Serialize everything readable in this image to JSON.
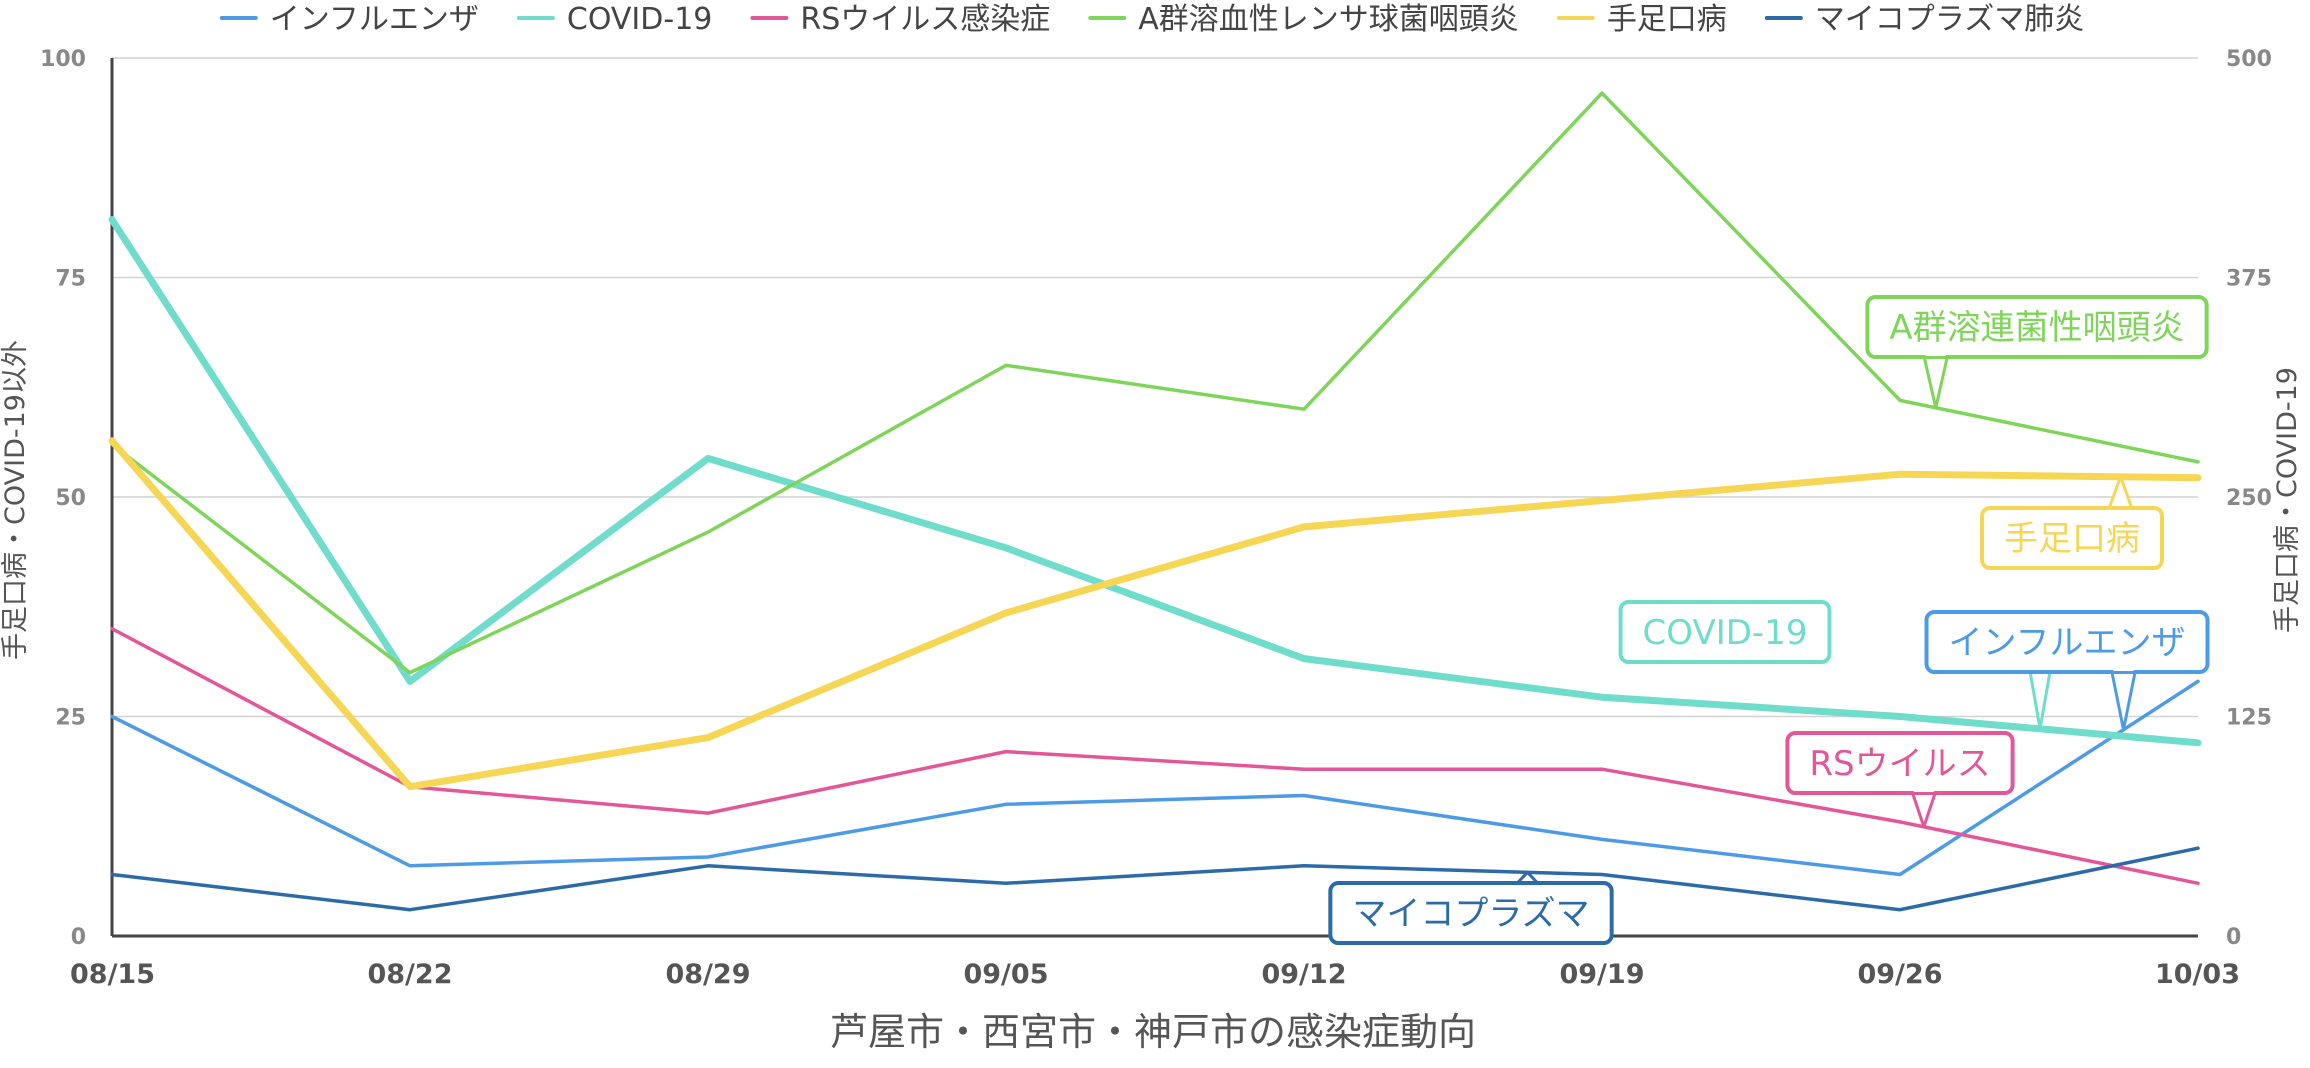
{
  "chart_data": {
    "type": "line",
    "xlabel": "芦屋市・西宮市・神戸市の感染症動向",
    "ylabel_left": "手足口病・COVID-19以外",
    "ylabel_right": "手足口病・COVID-19",
    "ylim_left": [
      0,
      100
    ],
    "ylim_right": [
      0,
      500
    ],
    "yticks_left": [
      0,
      25,
      50,
      75,
      100
    ],
    "yticks_right": [
      0,
      125,
      250,
      375,
      500
    ],
    "grid": true,
    "legend_position": "top",
    "categories": [
      "08/15",
      "08/22",
      "08/29",
      "09/05",
      "09/12",
      "09/19",
      "09/26",
      "10/03"
    ],
    "series": [
      {
        "name": "インフルエンザ",
        "axis": "left",
        "color": "#4d9be6",
        "values": [
          25,
          8,
          9,
          15,
          16,
          11,
          7,
          29
        ]
      },
      {
        "name": "COVID-19",
        "axis": "right",
        "color": "#6fdccc",
        "values": [
          408,
          145,
          272,
          221,
          158,
          136,
          125,
          110
        ]
      },
      {
        "name": "RSウイルス感染症",
        "axis": "left",
        "color": "#e4569a",
        "values": [
          35,
          17,
          14,
          21,
          19,
          19,
          13,
          6
        ]
      },
      {
        "name": "A群溶血性レンサ球菌咽頭炎",
        "axis": "left",
        "color": "#7fd45a",
        "values": [
          56,
          30,
          46,
          65,
          60,
          96,
          61,
          54
        ]
      },
      {
        "name": "手足口病",
        "axis": "right",
        "color": "#f6d655",
        "values": [
          282,
          85,
          113,
          184,
          233,
          248,
          263,
          261
        ]
      },
      {
        "name": "マイコプラズマ肺炎",
        "axis": "left",
        "color": "#2c6aa8",
        "values": [
          7,
          3,
          8,
          6,
          8,
          7,
          3,
          10
        ]
      }
    ],
    "annotations": [
      {
        "text": "A群溶連菌性咽頭炎",
        "series": "A群溶血性レンサ球菌咽頭炎",
        "color": "#7fd45a"
      },
      {
        "text": "手足口病",
        "series": "手足口病",
        "color": "#f6d655"
      },
      {
        "text": "COVID-19",
        "series": "COVID-19",
        "color": "#6fdccc"
      },
      {
        "text": "インフルエンザ",
        "series": "インフルエンザ",
        "color": "#4d9be6"
      },
      {
        "text": "RSウイルス",
        "series": "RSウイルス感染症",
        "color": "#e4569a"
      },
      {
        "text": "マイコプラズマ",
        "series": "マイコプラズマ肺炎",
        "color": "#2c6aa8"
      }
    ]
  }
}
